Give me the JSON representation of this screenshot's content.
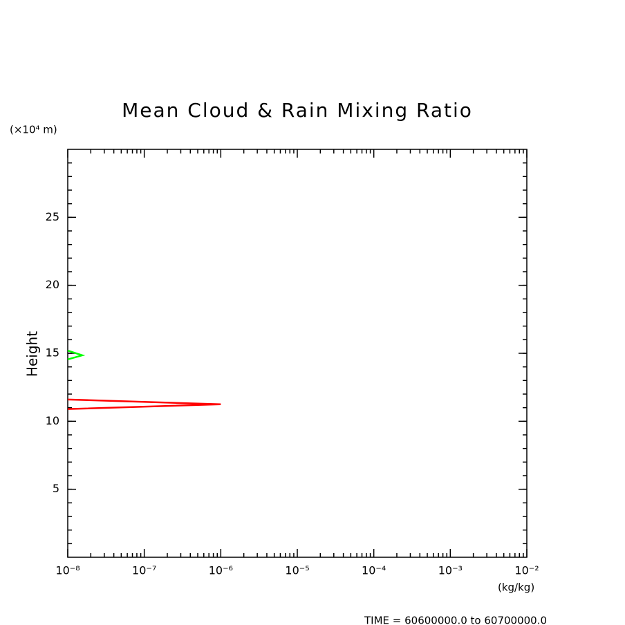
{
  "chart_data": {
    "type": "line",
    "title": "Mean Cloud & Rain Mixing Ratio",
    "y_label": "Height",
    "y_units": "(×10⁴ m)",
    "x_units": "(kg/kg)",
    "footer": "TIME = 60600000.0 to 60700000.0",
    "xscale": "log",
    "xlim": [
      1e-08,
      0.01
    ],
    "xticks": [
      {
        "value": 1e-08,
        "label": "10⁻⁸"
      },
      {
        "value": 1e-07,
        "label": "10⁻⁷"
      },
      {
        "value": 1e-06,
        "label": "10⁻⁶"
      },
      {
        "value": 1e-05,
        "label": "10⁻⁵"
      },
      {
        "value": 0.0001,
        "label": "10⁻⁴"
      },
      {
        "value": 0.001,
        "label": "10⁻³"
      },
      {
        "value": 0.01,
        "label": "10⁻²"
      }
    ],
    "ylim": [
      0,
      30
    ],
    "yticks": [
      5,
      10,
      15,
      20,
      25
    ],
    "series": [
      {
        "color": "#ff0000",
        "x": [
          1e-08,
          1e-06,
          1e-08
        ],
        "values": [
          10.9,
          11.25,
          11.6
        ]
      },
      {
        "color": "#00ff00",
        "x": [
          1e-08,
          1.55e-08,
          1e-08
        ],
        "values": [
          14.55,
          14.85,
          15.2
        ]
      }
    ]
  }
}
